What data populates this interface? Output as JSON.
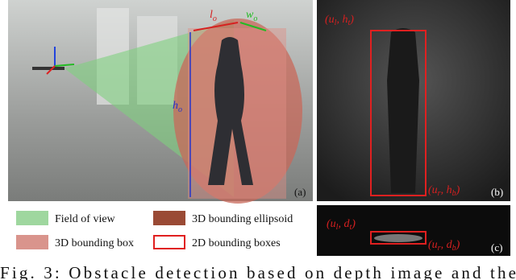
{
  "panel_a": {
    "label": "(a)",
    "length": [
      "l",
      "o"
    ],
    "width": [
      "w",
      "o"
    ],
    "height": [
      "h",
      "o"
    ]
  },
  "panel_b": {
    "label": "(b)",
    "top_left": [
      "(u",
      "l",
      ", h",
      "t",
      ")"
    ],
    "bottom_right": [
      "(u",
      "r",
      ", h",
      "b",
      ")"
    ]
  },
  "panel_c": {
    "label": "(c)",
    "top_left": [
      "(u",
      "l",
      ", d",
      "t",
      ")"
    ],
    "bottom_right": [
      "(u",
      "r",
      ", d",
      "b",
      ")"
    ]
  },
  "legend": [
    "Field of view",
    "3D bounding ellipsoid",
    "3D bounding box",
    "2D bounding boxes"
  ],
  "caption": "Fig. 3: Obstacle detection based on depth image and the"
}
